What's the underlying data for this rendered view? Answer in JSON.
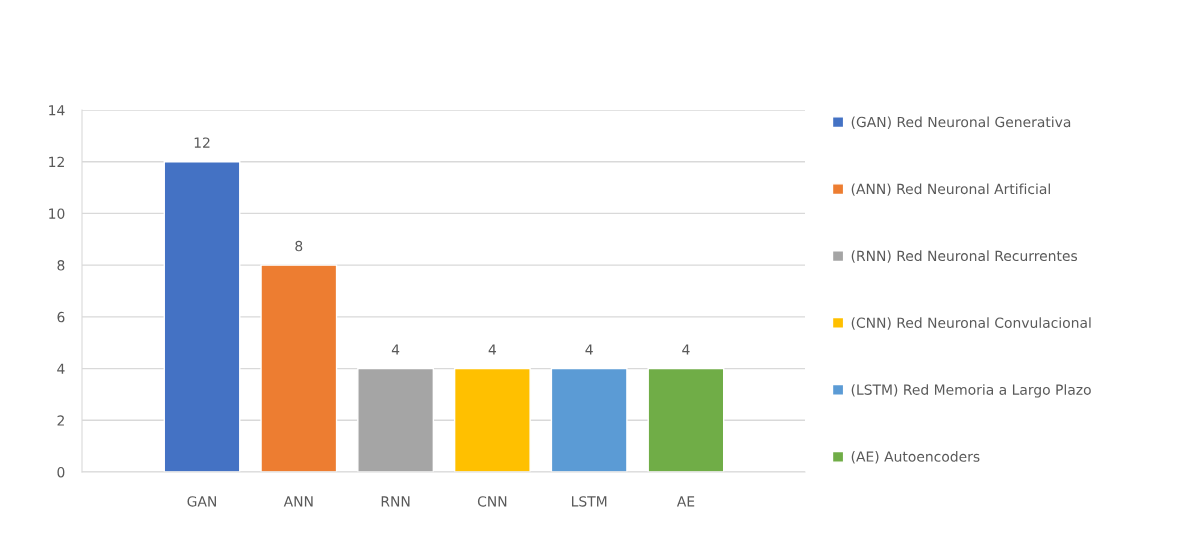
{
  "chart_data": {
    "type": "bar",
    "categories": [
      "GAN",
      "ANN",
      "RNN",
      "CNN",
      "LSTM",
      "AE"
    ],
    "series": [
      {
        "name": "(GAN) Red Neuronal Generativa",
        "color": "#4472c4",
        "values": [
          12,
          null,
          null,
          null,
          null,
          null
        ]
      },
      {
        "name": "(ANN) Red Neuronal Artificial",
        "color": "#ed7d31",
        "values": [
          null,
          8,
          null,
          null,
          null,
          null
        ]
      },
      {
        "name": "(RNN) Red Neuronal Recurrentes",
        "color": "#a5a5a5",
        "values": [
          null,
          null,
          4,
          null,
          null,
          null
        ]
      },
      {
        "name": "(CNN) Red Neuronal Convulacional",
        "color": "#ffc000",
        "values": [
          null,
          null,
          null,
          4,
          null,
          null
        ]
      },
      {
        "name": "(LSTM) Red Memoria a Largo Plazo",
        "color": "#5b9bd5",
        "values": [
          null,
          null,
          null,
          null,
          4,
          null
        ]
      },
      {
        "name": "(AE) Autoencoders",
        "color": "#70ad47",
        "values": [
          null,
          null,
          null,
          null,
          null,
          4
        ]
      }
    ],
    "ylim": [
      0,
      14
    ],
    "yticks": [
      0,
      2,
      4,
      6,
      8,
      10,
      12,
      14
    ],
    "grid": "y",
    "legend": "right",
    "data_labels": true
  }
}
